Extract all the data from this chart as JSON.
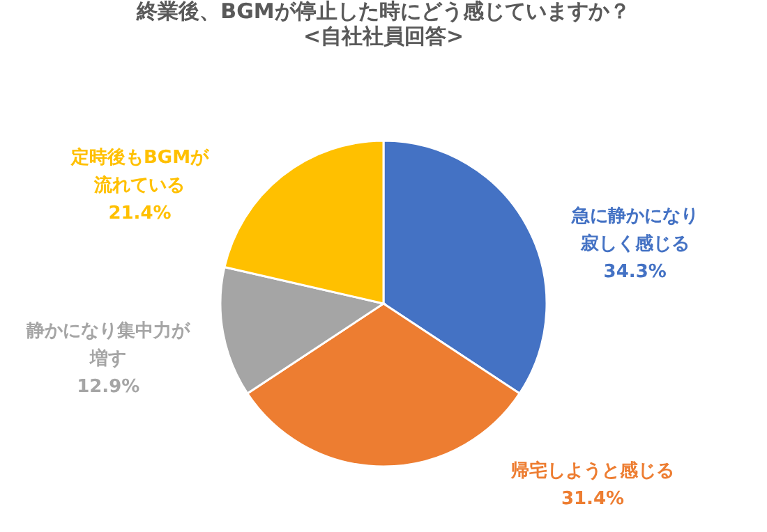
{
  "chart_data": {
    "type": "pie",
    "title": "終業後、BGMが停止した時にどう感じていますか？",
    "subtitle": "<自社社員回答>",
    "categories": [
      "急に静かになり寂しく感じる",
      "帰宅しようと感じる",
      "静かになり集中力が増す",
      "定時後もBGMが流れている"
    ],
    "values": [
      34.3,
      31.4,
      12.9,
      21.4
    ],
    "colors": [
      "#4472c4",
      "#ed7d31",
      "#a5a5a5",
      "#ffc000"
    ],
    "value_labels": [
      "34.3%",
      "31.4%",
      "12.9%",
      "21.4%"
    ]
  }
}
